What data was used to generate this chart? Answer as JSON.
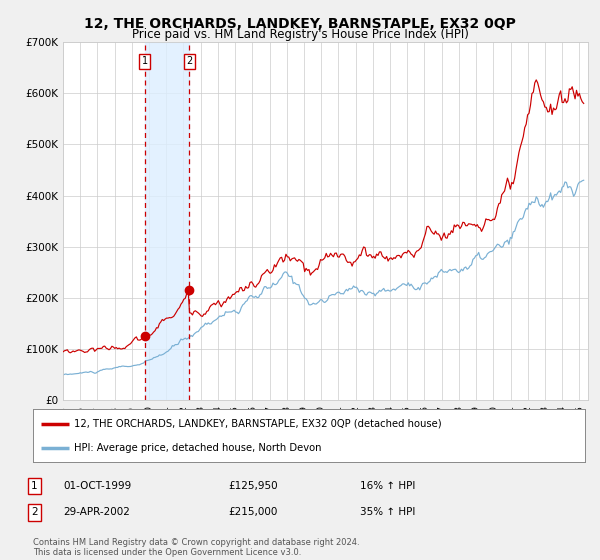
{
  "title": "12, THE ORCHARDS, LANDKEY, BARNSTAPLE, EX32 0QP",
  "subtitle": "Price paid vs. HM Land Registry's House Price Index (HPI)",
  "red_label": "12, THE ORCHARDS, LANDKEY, BARNSTAPLE, EX32 0QP (detached house)",
  "blue_label": "HPI: Average price, detached house, North Devon",
  "purchase1_date": "01-OCT-1999",
  "purchase1_price": 125950,
  "purchase1_pct": "16% ↑ HPI",
  "purchase2_date": "29-APR-2002",
  "purchase2_price": 215000,
  "purchase2_pct": "35% ↑ HPI",
  "footer": "Contains HM Land Registry data © Crown copyright and database right 2024.\nThis data is licensed under the Open Government Licence v3.0.",
  "ylim": [
    0,
    700000
  ],
  "yticks": [
    0,
    100000,
    200000,
    300000,
    400000,
    500000,
    600000,
    700000
  ],
  "ytick_labels": [
    "£0",
    "£100K",
    "£200K",
    "£300K",
    "£400K",
    "£500K",
    "£600K",
    "£700K"
  ],
  "red_color": "#cc0000",
  "blue_color": "#7ab0d4",
  "bg_color": "#f0f0f0",
  "plot_bg": "#ffffff",
  "purchase1_year": 1999.75,
  "purchase2_year": 2002.33,
  "shade_color": "#ddeeff",
  "start_year": 1995.0,
  "end_year": 2025.25
}
